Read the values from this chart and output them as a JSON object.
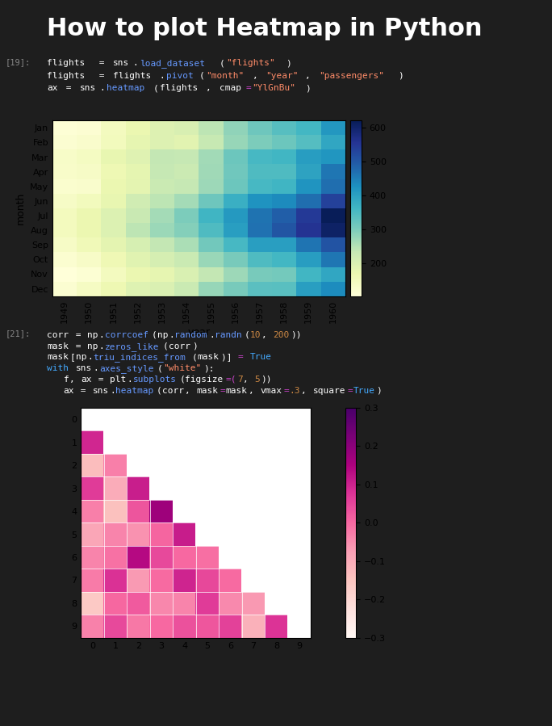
{
  "title": "How to plot Heatmap in Python",
  "title_color": "#ffffff",
  "bg_color": "#1e1e1e",
  "cell1_bg": "#2b2b2b",
  "cell2_bg": "#2b2b2b",
  "code1_line1": "flights = sns.load_dataset(\"flights\")",
  "code1_line2": "flights = flights.pivot(\"month\", \"year\", \"passengers\")",
  "code1_line3": "ax = sns.heatmap(flights, cmap=\"YlGnBu\")",
  "code2_line1": "corr = np.corrcoef(np.random.randn(10, 200))",
  "code2_line2": "mask = np.zeros_like(corr)",
  "code2_line3": "mask[np.triu_indices_from(mask)] = True",
  "code2_line4": "with sns.axes_style(\"white\"):",
  "code2_line5": "    f, ax = plt.subplots(figsize=(7, 5))",
  "code2_line6": "    ax = sns.heatmap(corr, mask=mask, vmax=.3, square=True)",
  "cell1_label": "[19]:",
  "cell2_label": "[21]:"
}
